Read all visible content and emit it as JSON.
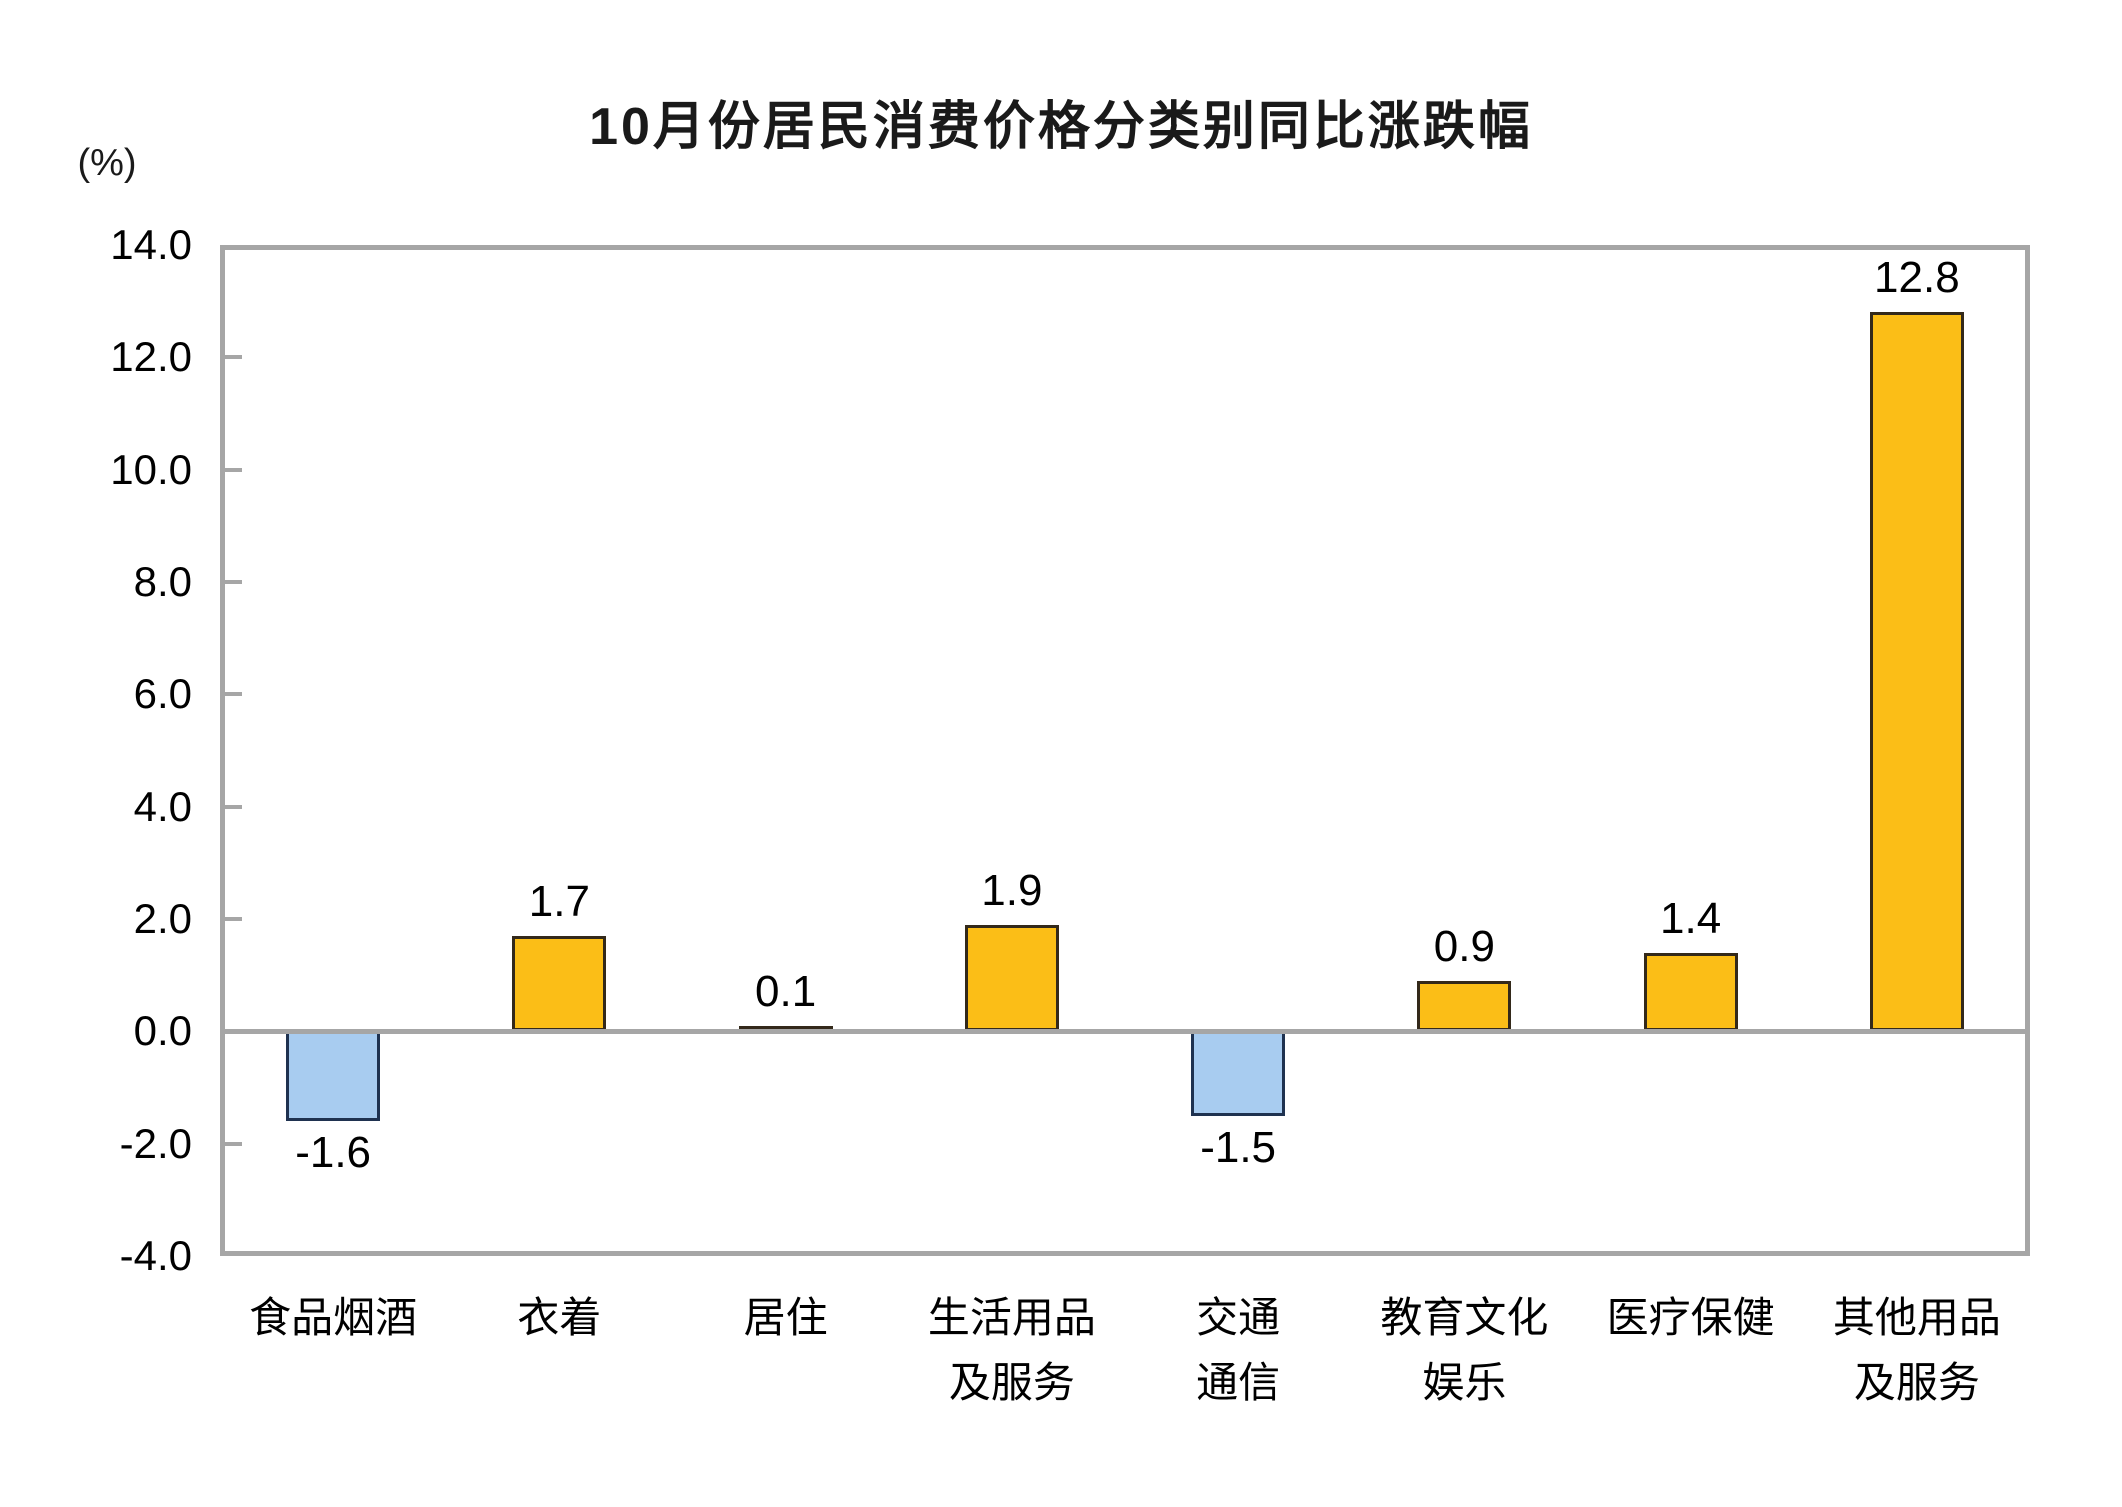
{
  "title": "10月份居民消费价格分类别同比涨跌幅",
  "chart_data": {
    "type": "bar",
    "title": "10月份居民消费价格分类别同比涨跌幅",
    "unit": "(%)",
    "categories": [
      "食品烟酒",
      "衣着",
      "居住",
      "生活用品\n及服务",
      "交通\n通信",
      "教育文化\n娱乐",
      "医疗保健",
      "其他用品\n及服务"
    ],
    "values": [
      -1.6,
      1.7,
      0.1,
      1.9,
      -1.5,
      0.9,
      1.4,
      12.8
    ],
    "value_labels": [
      "-1.6",
      "1.7",
      "0.1",
      "1.9",
      "-1.5",
      "0.9",
      "1.4",
      "12.8"
    ],
    "xlabel": "",
    "ylabel": "(%)",
    "ylim": [
      -4.0,
      14.0
    ],
    "ytick_step": 2.0,
    "ytick_labels": [
      "14.0",
      "12.0",
      "10.0",
      "8.0",
      "6.0",
      "4.0",
      "2.0",
      "0.0",
      "-2.0",
      "-4.0"
    ],
    "grid": false,
    "legend": false,
    "colors": {
      "positive_fill": "#FBBE17",
      "positive_border": "#33291A",
      "negative_fill": "#A8CCF0",
      "negative_border": "#1F3250",
      "axis": "#A6A6A6",
      "text": "#000000"
    }
  }
}
